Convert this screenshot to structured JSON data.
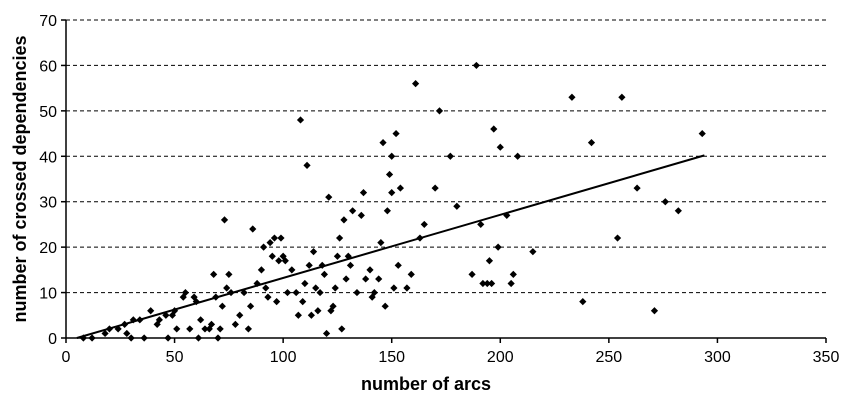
{
  "chart_data": {
    "type": "scatter",
    "title": "",
    "xlabel": "number of arcs",
    "ylabel": "number of crossed dependencies",
    "xlim": [
      0,
      350
    ],
    "ylim": [
      0,
      70
    ],
    "xticks": [
      0,
      50,
      100,
      150,
      200,
      250,
      300,
      350
    ],
    "yticks": [
      0,
      10,
      20,
      30,
      40,
      50,
      60,
      70
    ],
    "grid": "horizontal dashed",
    "legend": "none",
    "marker_color": "#000000",
    "series": [
      {
        "points": [
          [
            8,
            0
          ],
          [
            12,
            0
          ],
          [
            18,
            1
          ],
          [
            20,
            2
          ],
          [
            24,
            2
          ],
          [
            27,
            3
          ],
          [
            28,
            1
          ],
          [
            30,
            0
          ],
          [
            31,
            4
          ],
          [
            34,
            4
          ],
          [
            36,
            0
          ],
          [
            39,
            6
          ],
          [
            42,
            3
          ],
          [
            43,
            4
          ],
          [
            46,
            5
          ],
          [
            47,
            0
          ],
          [
            49,
            5
          ],
          [
            50,
            6
          ],
          [
            51,
            2
          ],
          [
            54,
            9
          ],
          [
            55,
            10
          ],
          [
            57,
            2
          ],
          [
            59,
            9
          ],
          [
            60,
            8
          ],
          [
            61,
            0
          ],
          [
            62,
            4
          ],
          [
            64,
            2
          ],
          [
            66,
            2
          ],
          [
            67,
            3
          ],
          [
            68,
            14
          ],
          [
            69,
            9
          ],
          [
            70,
            0
          ],
          [
            71,
            2
          ],
          [
            72,
            7
          ],
          [
            73,
            26
          ],
          [
            74,
            11
          ],
          [
            75,
            14
          ],
          [
            76,
            10
          ],
          [
            78,
            3
          ],
          [
            80,
            5
          ],
          [
            82,
            10
          ],
          [
            84,
            2
          ],
          [
            85,
            7
          ],
          [
            86,
            24
          ],
          [
            88,
            12
          ],
          [
            90,
            15
          ],
          [
            91,
            20
          ],
          [
            92,
            11
          ],
          [
            93,
            9
          ],
          [
            94,
            21
          ],
          [
            95,
            18
          ],
          [
            96,
            22
          ],
          [
            97,
            8
          ],
          [
            98,
            17
          ],
          [
            99,
            22
          ],
          [
            100,
            18
          ],
          [
            101,
            17
          ],
          [
            102,
            10
          ],
          [
            104,
            15
          ],
          [
            106,
            10
          ],
          [
            107,
            5
          ],
          [
            108,
            48
          ],
          [
            109,
            8
          ],
          [
            110,
            12
          ],
          [
            111,
            38
          ],
          [
            112,
            16
          ],
          [
            113,
            5
          ],
          [
            114,
            19
          ],
          [
            115,
            11
          ],
          [
            116,
            6
          ],
          [
            117,
            10
          ],
          [
            118,
            16
          ],
          [
            119,
            14
          ],
          [
            120,
            1
          ],
          [
            121,
            31
          ],
          [
            122,
            6
          ],
          [
            123,
            7
          ],
          [
            124,
            11
          ],
          [
            125,
            18
          ],
          [
            126,
            22
          ],
          [
            127,
            2
          ],
          [
            128,
            26
          ],
          [
            129,
            13
          ],
          [
            130,
            18
          ],
          [
            131,
            16
          ],
          [
            132,
            28
          ],
          [
            134,
            10
          ],
          [
            136,
            27
          ],
          [
            137,
            32
          ],
          [
            138,
            13
          ],
          [
            140,
            15
          ],
          [
            141,
            9
          ],
          [
            142,
            10
          ],
          [
            144,
            13
          ],
          [
            145,
            21
          ],
          [
            146,
            43
          ],
          [
            147,
            7
          ],
          [
            148,
            28
          ],
          [
            149,
            36
          ],
          [
            150,
            32
          ],
          [
            150,
            40
          ],
          [
            151,
            11
          ],
          [
            152,
            45
          ],
          [
            153,
            16
          ],
          [
            154,
            33
          ],
          [
            157,
            11
          ],
          [
            159,
            14
          ],
          [
            161,
            56
          ],
          [
            163,
            22
          ],
          [
            165,
            25
          ],
          [
            170,
            33
          ],
          [
            172,
            50
          ],
          [
            177,
            40
          ],
          [
            180,
            29
          ],
          [
            187,
            14
          ],
          [
            189,
            60
          ],
          [
            191,
            25
          ],
          [
            192,
            12
          ],
          [
            194,
            12
          ],
          [
            195,
            17
          ],
          [
            196,
            12
          ],
          [
            197,
            46
          ],
          [
            199,
            20
          ],
          [
            200,
            42
          ],
          [
            203,
            27
          ],
          [
            205,
            12
          ],
          [
            206,
            14
          ],
          [
            208,
            40
          ],
          [
            215,
            19
          ],
          [
            233,
            53
          ],
          [
            238,
            8
          ],
          [
            242,
            43
          ],
          [
            254,
            22
          ],
          [
            256,
            53
          ],
          [
            263,
            33
          ],
          [
            271,
            6
          ],
          [
            276,
            30
          ],
          [
            282,
            28
          ],
          [
            293,
            45
          ]
        ]
      }
    ],
    "trendline": {
      "x": [
        5,
        294
      ],
      "y": [
        0,
        40.2
      ]
    }
  }
}
